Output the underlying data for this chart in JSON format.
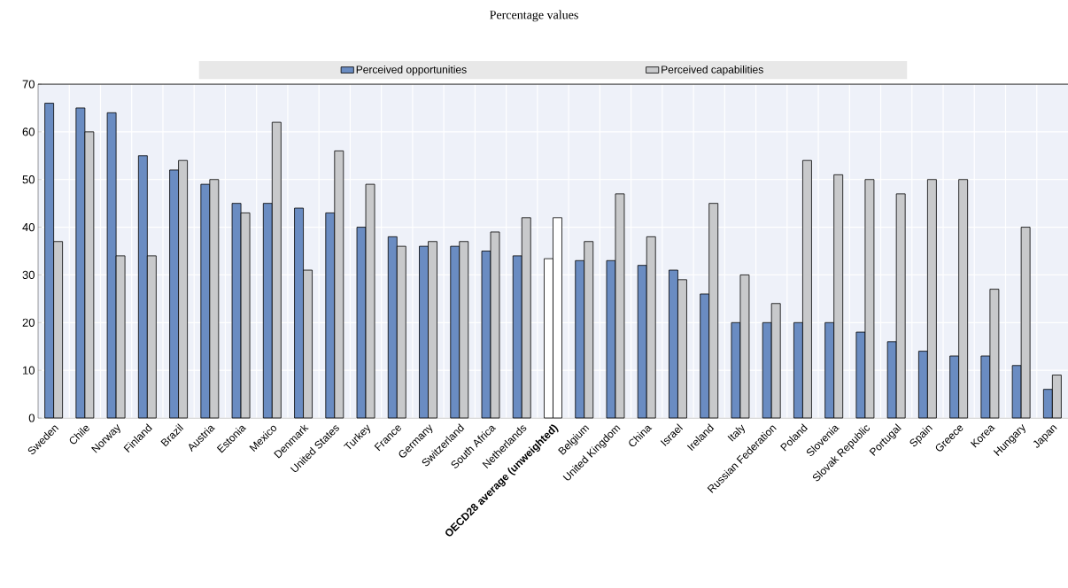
{
  "chart_data": {
    "type": "bar",
    "title": "Percentage values",
    "categories": [
      "Sweden",
      "Chile",
      "Norway",
      "Finland",
      "Brazil",
      "Austria",
      "Estonia",
      "Mexico",
      "Denmark",
      "United States",
      "Turkey",
      "France",
      "Germany",
      "Switzerland",
      "South Africa",
      "Netherlands",
      "**OECD28 average (unweighted)**",
      "Belgium",
      "United Kingdom",
      "China",
      "Israel",
      "Ireland",
      "Italy",
      "Russian Federation",
      "Poland",
      "Slovenia",
      "Slovak Republic",
      "Portugal",
      "Spain",
      "Greece",
      "Korea",
      "Hungary",
      "Japan"
    ],
    "series": [
      {
        "name": "Perceived opportunities",
        "color": "#6a8cc2",
        "colors": [
          "#6a8cc2",
          "#6a8cc2",
          "#6a8cc2",
          "#6a8cc2",
          "#6a8cc2",
          "#6a8cc2",
          "#6a8cc2",
          "#6a8cc2",
          "#6a8cc2",
          "#6a8cc2",
          "#6a8cc2",
          "#6a8cc2",
          "#6a8cc2",
          "#6a8cc2",
          "#6a8cc2",
          "#6a8cc2",
          "#ffffff",
          "#6a8cc2",
          "#6a8cc2",
          "#6a8cc2",
          "#6a8cc2",
          "#6a8cc2",
          "#6a8cc2",
          "#6a8cc2",
          "#6a8cc2",
          "#6a8cc2",
          "#6a8cc2",
          "#6a8cc2",
          "#6a8cc2",
          "#6a8cc2",
          "#6a8cc2",
          "#6a8cc2",
          "#6a8cc2"
        ],
        "values": [
          66,
          65,
          64,
          55,
          52,
          49,
          45,
          45,
          44,
          43,
          40,
          38,
          36,
          36,
          35,
          34,
          33.4,
          33,
          33,
          32,
          31,
          26,
          20,
          20,
          20,
          20,
          18,
          16,
          14,
          13,
          13,
          11,
          6
        ]
      },
      {
        "name": "Perceived capabilities",
        "color": "#c8c9cb",
        "colors": [
          "#c8c9cb",
          "#c8c9cb",
          "#c8c9cb",
          "#c8c9cb",
          "#c8c9cb",
          "#c8c9cb",
          "#c8c9cb",
          "#c8c9cb",
          "#c8c9cb",
          "#c8c9cb",
          "#c8c9cb",
          "#c8c9cb",
          "#c8c9cb",
          "#c8c9cb",
          "#c8c9cb",
          "#c8c9cb",
          "#ffffff",
          "#c8c9cb",
          "#c8c9cb",
          "#c8c9cb",
          "#c8c9cb",
          "#c8c9cb",
          "#c8c9cb",
          "#c8c9cb",
          "#c8c9cb",
          "#c8c9cb",
          "#c8c9cb",
          "#c8c9cb",
          "#c8c9cb",
          "#c8c9cb",
          "#c8c9cb",
          "#c8c9cb",
          "#c8c9cb"
        ],
        "values": [
          37,
          60,
          34,
          34,
          54,
          50,
          43,
          62,
          31,
          56,
          49,
          36,
          37,
          37,
          39,
          42,
          42,
          37,
          47,
          38,
          29,
          45,
          30,
          24,
          54,
          51,
          50,
          47,
          50,
          50,
          27,
          40,
          9
        ]
      }
    ],
    "ylim": [
      0,
      70
    ],
    "yticks": [
      0,
      10,
      20,
      30,
      40,
      50,
      60,
      70
    ],
    "grid": true,
    "legend": "top"
  }
}
